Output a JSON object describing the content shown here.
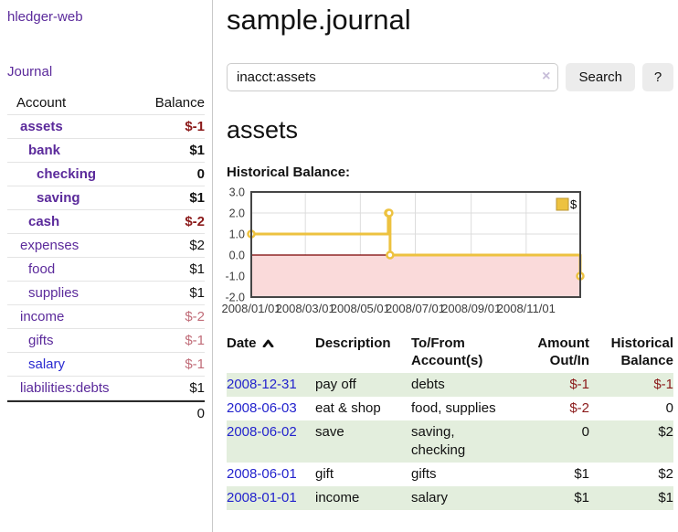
{
  "app": {
    "brand": "hledger-web",
    "nav": {
      "journal": "Journal"
    }
  },
  "sidebar": {
    "header": {
      "account": "Account",
      "balance": "Balance"
    },
    "accounts": [
      {
        "name": "assets",
        "depth": 1,
        "bold": true,
        "balance": "$-1",
        "balance_neg": true
      },
      {
        "name": "bank",
        "depth": 2,
        "bold": true,
        "balance": "$1"
      },
      {
        "name": "checking",
        "depth": 3,
        "bold": true,
        "balance": "0"
      },
      {
        "name": "saving",
        "depth": 3,
        "bold": true,
        "balance": "$1"
      },
      {
        "name": "cash",
        "depth": 2,
        "bold": true,
        "balance": "$-2",
        "balance_neg": true
      },
      {
        "name": "expenses",
        "depth": 1,
        "bold": false,
        "balance": "$2"
      },
      {
        "name": "food",
        "depth": 2,
        "bold": false,
        "balance": "$1"
      },
      {
        "name": "supplies",
        "depth": 2,
        "bold": false,
        "balance": "$1"
      },
      {
        "name": "income",
        "depth": 1,
        "bold": false,
        "balance": "$-2",
        "balance_dim": true
      },
      {
        "name": "gifts",
        "depth": 2,
        "bold": false,
        "balance": "$-1",
        "balance_dim": true
      },
      {
        "name": "salary",
        "depth": 2,
        "bold": false,
        "blue": true,
        "balance": "$-1",
        "balance_dim": true
      },
      {
        "name": "liabilities:debts",
        "depth": 1,
        "bold": false,
        "balance": "$1"
      }
    ],
    "total": "0"
  },
  "main": {
    "title": "sample.journal",
    "search": {
      "value": "inacct:assets",
      "clear": "×",
      "button": "Search",
      "help": "?"
    },
    "heading": "assets",
    "chart_title": "Historical Balance:"
  },
  "chart_data": {
    "type": "line",
    "title": "Historical Balance:",
    "x_type": "date",
    "xlim": [
      "2008-01-01",
      "2008-12-31"
    ],
    "ylim": [
      -2,
      3
    ],
    "x_ticks": [
      "2008/01/01",
      "2008/03/01",
      "2008/05/01",
      "2008/07/01",
      "2008/09/01",
      "2008/11/01"
    ],
    "y_ticks": [
      3,
      2,
      1,
      0,
      -1,
      -2
    ],
    "grid": true,
    "legend_position": "top-right",
    "negative_fill": "#fadada",
    "zero_line_color": "#7b0000",
    "series": [
      {
        "name": "$",
        "color": "#edc240",
        "steps": true,
        "points": [
          [
            "2008-01-01",
            1
          ],
          [
            "2008-06-01",
            2
          ],
          [
            "2008-06-02",
            2
          ],
          [
            "2008-06-03",
            0
          ],
          [
            "2008-12-31",
            -1
          ]
        ]
      }
    ]
  },
  "register": {
    "header": {
      "date": "Date",
      "description": "Description",
      "accounts": "To/From\nAccount(s)",
      "amount": "Amount\nOut/In",
      "balance": "Historical\nBalance"
    },
    "rows": [
      {
        "date": "2008-12-31",
        "description": "pay off",
        "accounts": "debts",
        "amount": "$-1",
        "amount_neg": true,
        "balance": "$-1",
        "balance_neg": true
      },
      {
        "date": "2008-06-03",
        "description": "eat & shop",
        "accounts": "food, supplies",
        "amount": "$-2",
        "amount_neg": true,
        "balance": "0"
      },
      {
        "date": "2008-06-02",
        "description": "save",
        "accounts": "saving,\nchecking",
        "amount": "0",
        "balance": "$2"
      },
      {
        "date": "2008-06-01",
        "description": "gift",
        "accounts": "gifts",
        "amount": "$1",
        "balance": "$2"
      },
      {
        "date": "2008-01-01",
        "description": "income",
        "accounts": "salary",
        "amount": "$1",
        "balance": "$1"
      }
    ]
  }
}
